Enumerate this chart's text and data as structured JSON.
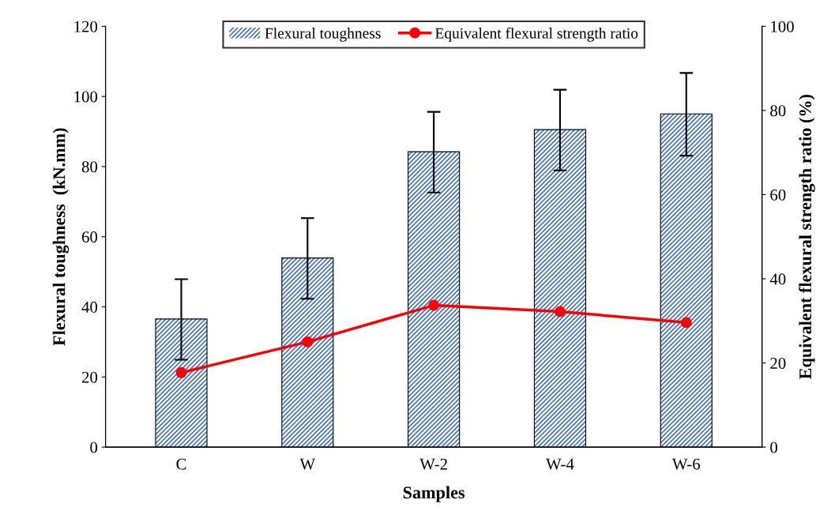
{
  "chart_data": {
    "type": "bar",
    "xlabel": "Samples",
    "ylabel": "Flexural toughness  (kN.mm)",
    "y2label": "Equivalent flexural strength ratio (%)",
    "categories": [
      "C",
      "W",
      "W-2",
      "W-4",
      "W-6"
    ],
    "series": [
      {
        "name": "Flexural toughness",
        "color": "#4472c4",
        "values": [
          36.4,
          53.8,
          84.1,
          90.4,
          94.9
        ],
        "errors": [
          11.5,
          11.5,
          11.5,
          11.5,
          11.8
        ]
      },
      {
        "name": "Equivalent flexural strength ratio",
        "type": "line",
        "axis": "y2",
        "color": "#ff0000",
        "marker": "circle",
        "values": [
          17.7,
          25.0,
          33.7,
          32.2,
          29.6
        ]
      }
    ],
    "ylim": [
      0,
      120
    ],
    "yticks": [
      0,
      20,
      40,
      60,
      80,
      100,
      120
    ],
    "y2lim": [
      0,
      100
    ],
    "y2ticks": [
      0,
      20,
      40,
      60,
      80,
      100
    ],
    "grid": false,
    "legend": "top"
  }
}
